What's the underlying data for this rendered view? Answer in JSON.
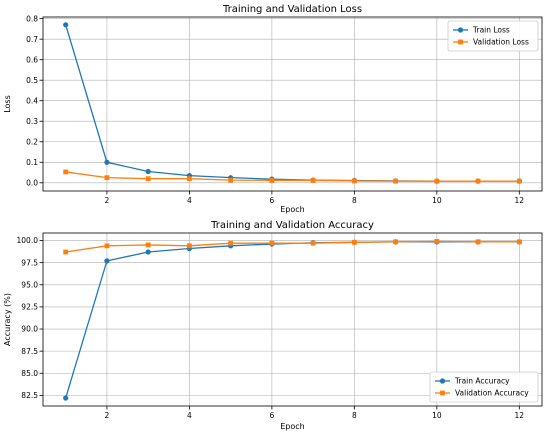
{
  "chart_data": [
    {
      "type": "line",
      "title": "Training and Validation Loss",
      "xlabel": "Epoch",
      "ylabel": "Loss",
      "x": [
        1,
        2,
        3,
        4,
        5,
        6,
        7,
        8,
        9,
        10,
        11,
        12
      ],
      "xlim": [
        0.45,
        12.55
      ],
      "ylim": [
        -0.04,
        0.808
      ],
      "xticks": [
        2,
        4,
        6,
        8,
        10,
        12
      ],
      "yticks": [
        0.0,
        0.1,
        0.2,
        0.3,
        0.4,
        0.5,
        0.6,
        0.7,
        0.8
      ],
      "ytick_labels": [
        "0.0",
        "0.1",
        "0.2",
        "0.3",
        "0.4",
        "0.5",
        "0.6",
        "0.7",
        "0.8"
      ],
      "grid": true,
      "legend": "upper right",
      "series": [
        {
          "name": "Train Loss",
          "color": "#1f77b4",
          "marker": "circle",
          "values": [
            0.77,
            0.1,
            0.055,
            0.035,
            0.025,
            0.018,
            0.013,
            0.011,
            0.009,
            0.008,
            0.008,
            0.008
          ]
        },
        {
          "name": "Validation Loss",
          "color": "#ff7f0e",
          "marker": "square",
          "values": [
            0.053,
            0.025,
            0.02,
            0.02,
            0.013,
            0.012,
            0.012,
            0.009,
            0.008,
            0.008,
            0.008,
            0.008
          ]
        }
      ]
    },
    {
      "type": "line",
      "title": "Training and Validation Accuracy",
      "xlabel": "Epoch",
      "ylabel": "Accuracy (%)",
      "x": [
        1,
        2,
        3,
        4,
        5,
        6,
        7,
        8,
        9,
        10,
        11,
        12
      ],
      "xlim": [
        0.45,
        12.55
      ],
      "ylim": [
        81.3,
        100.85
      ],
      "xticks": [
        2,
        4,
        6,
        8,
        10,
        12
      ],
      "yticks": [
        82.5,
        85.0,
        87.5,
        90.0,
        92.5,
        95.0,
        97.5,
        100.0
      ],
      "ytick_labels": [
        "82.5",
        "85.0",
        "87.5",
        "90.0",
        "92.5",
        "95.0",
        "97.5",
        "100.0"
      ],
      "grid": true,
      "legend": "lower right",
      "series": [
        {
          "name": "Train Accuracy",
          "color": "#1f77b4",
          "marker": "circle",
          "values": [
            82.2,
            97.7,
            98.7,
            99.1,
            99.4,
            99.6,
            99.75,
            99.8,
            99.85,
            99.85,
            99.85,
            99.85
          ]
        },
        {
          "name": "Validation Accuracy",
          "color": "#ff7f0e",
          "marker": "square",
          "values": [
            98.7,
            99.4,
            99.5,
            99.4,
            99.7,
            99.7,
            99.7,
            99.8,
            99.85,
            99.9,
            99.85,
            99.85
          ]
        }
      ]
    }
  ]
}
